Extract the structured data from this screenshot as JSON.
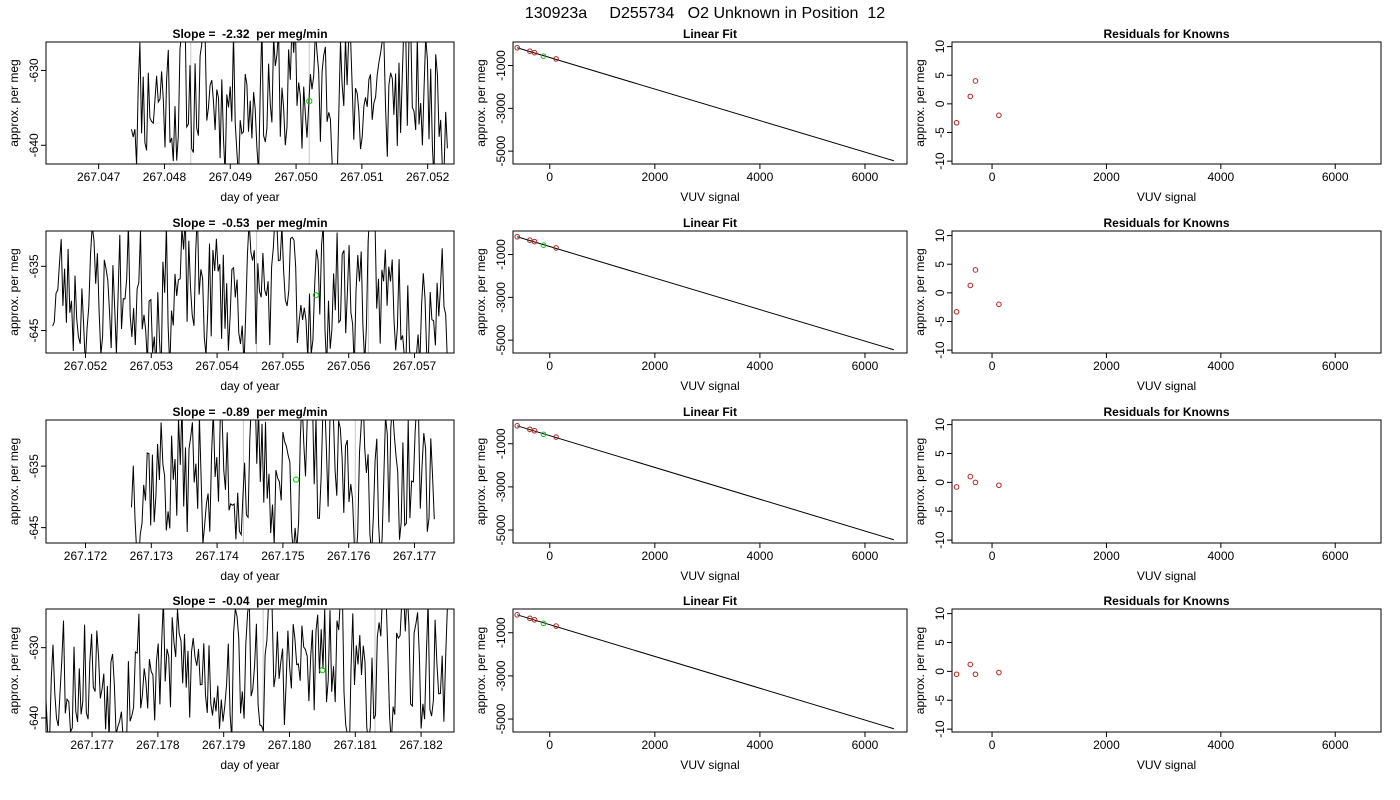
{
  "figure_title": "130923a     D255734   O2 Unknown in Position  12",
  "chart_data": [
    {
      "type": "line",
      "title": "Slope =  -2.32  per meg/min",
      "xlabel": "day of year",
      "ylabel": "approx. per meg",
      "xlim": [
        267.0462,
        267.0524
      ],
      "ylim": [
        -642.5,
        -626.2
      ],
      "x_ticks": [
        "267.047",
        "267.048",
        "267.049",
        "267.050",
        "267.051",
        "267.052"
      ],
      "y_ticks": [
        "-630",
        "-640"
      ],
      "series": [
        {
          "seed": 11,
          "x_start": 267.0475,
          "x_end": 267.0523,
          "n": 190,
          "center": -633,
          "amplitude": 9
        }
      ],
      "marker": {
        "x": 267.0502,
        "y": -634.1,
        "color": "#00cc00"
      },
      "shaded_lines": [
        267.0484,
        267.0502
      ]
    },
    {
      "type": "scatter",
      "title": "Linear Fit",
      "xlabel": "VUV signal",
      "ylabel": "approx. per meg",
      "xlim": [
        -700,
        6800
      ],
      "ylim": [
        -5600,
        100
      ],
      "x_ticks": [
        "0",
        "2000",
        "4000",
        "6000"
      ],
      "y_ticks": [
        "-1000",
        "-3000",
        "-5000"
      ],
      "line": [
        [
          -620,
          -170
        ],
        [
          6550,
          -5450
        ]
      ],
      "known_points": [
        [
          -620,
          -170
        ],
        [
          -380,
          -330
        ],
        [
          -290,
          -400
        ],
        [
          120,
          -690
        ]
      ],
      "unknown_point": [
        -120,
        -560
      ]
    },
    {
      "type": "scatter",
      "title": "Residuals for Knowns",
      "xlabel": "VUV signal",
      "ylabel": "approx. per meg",
      "xlim": [
        -700,
        6800
      ],
      "ylim": [
        -10.5,
        10.8
      ],
      "x_ticks": [
        "0",
        "2000",
        "4000",
        "6000"
      ],
      "y_ticks": [
        "-10",
        "-5",
        "0",
        "5",
        "10"
      ],
      "points": [
        [
          -620,
          -3.3
        ],
        [
          -380,
          1.3
        ],
        [
          -290,
          4.0
        ],
        [
          120,
          -2.0
        ]
      ]
    },
    {
      "type": "line",
      "title": "Slope =  -0.53  per meg/min",
      "xlabel": "day of year",
      "ylabel": "approx. per meg",
      "xlim": [
        267.0514,
        267.0576
      ],
      "ylim": [
        -648.5,
        -629.5
      ],
      "x_ticks": [
        "267.052",
        "267.053",
        "267.054",
        "267.055",
        "267.056",
        "267.057"
      ],
      "y_ticks": [
        "-635",
        "-645"
      ],
      "series": [
        {
          "seed": 23,
          "x_start": 267.0515,
          "x_end": 267.0575,
          "n": 230,
          "center": -639,
          "amplitude": 10
        }
      ],
      "marker": {
        "x": 267.0555,
        "y": -639.5,
        "color": "#00cc00"
      },
      "shaded_lines": [
        267.0546,
        267.0563
      ]
    },
    {
      "type": "scatter",
      "title": "Linear Fit",
      "xlabel": "VUV signal",
      "ylabel": "approx. per meg",
      "xlim": [
        -700,
        6800
      ],
      "ylim": [
        -5600,
        100
      ],
      "x_ticks": [
        "0",
        "2000",
        "4000",
        "6000"
      ],
      "y_ticks": [
        "-1000",
        "-3000",
        "-5000"
      ],
      "line": [
        [
          -620,
          -170
        ],
        [
          6550,
          -5450
        ]
      ],
      "known_points": [
        [
          -620,
          -170
        ],
        [
          -380,
          -330
        ],
        [
          -290,
          -400
        ],
        [
          120,
          -690
        ]
      ],
      "unknown_point": [
        -120,
        -560
      ]
    },
    {
      "type": "scatter",
      "title": "Residuals for Knowns",
      "xlabel": "VUV signal",
      "ylabel": "approx. per meg",
      "xlim": [
        -700,
        6800
      ],
      "ylim": [
        -10.5,
        10.8
      ],
      "x_ticks": [
        "0",
        "2000",
        "4000",
        "6000"
      ],
      "y_ticks": [
        "-10",
        "-5",
        "0",
        "5",
        "10"
      ],
      "points": [
        [
          -620,
          -3.3
        ],
        [
          -380,
          1.3
        ],
        [
          -290,
          4.0
        ],
        [
          120,
          -2.0
        ]
      ]
    },
    {
      "type": "line",
      "title": "Slope =  -0.89  per meg/min",
      "xlabel": "day of year",
      "ylabel": "approx. per meg",
      "xlim": [
        267.1714,
        267.1776
      ],
      "ylim": [
        -647.5,
        -627.5
      ],
      "x_ticks": [
        "267.172",
        "267.173",
        "267.174",
        "267.175",
        "267.176",
        "267.177"
      ],
      "y_ticks": [
        "-635",
        "-645"
      ],
      "series": [
        {
          "seed": 37,
          "x_start": 267.1727,
          "x_end": 267.1773,
          "n": 175,
          "center": -636,
          "amplitude": 11
        }
      ],
      "marker": {
        "x": 267.1752,
        "y": -637.2,
        "color": "#00cc00"
      },
      "shaded_lines": [
        267.1744,
        267.1761
      ]
    },
    {
      "type": "scatter",
      "title": "Linear Fit",
      "xlabel": "VUV signal",
      "ylabel": "approx. per meg",
      "xlim": [
        -700,
        6800
      ],
      "ylim": [
        -5600,
        100
      ],
      "x_ticks": [
        "0",
        "2000",
        "4000",
        "6000"
      ],
      "y_ticks": [
        "-1000",
        "-3000",
        "-5000"
      ],
      "line": [
        [
          -620,
          -170
        ],
        [
          6550,
          -5450
        ]
      ],
      "known_points": [
        [
          -620,
          -170
        ],
        [
          -380,
          -330
        ],
        [
          -290,
          -400
        ],
        [
          120,
          -690
        ]
      ],
      "unknown_point": [
        -120,
        -560
      ]
    },
    {
      "type": "scatter",
      "title": "Residuals for Knowns",
      "xlabel": "VUV signal",
      "ylabel": "approx. per meg",
      "xlim": [
        -700,
        6800
      ],
      "ylim": [
        -10.5,
        10.8
      ],
      "x_ticks": [
        "0",
        "2000",
        "4000",
        "6000"
      ],
      "y_ticks": [
        "-10",
        "-5",
        "0",
        "5",
        "10"
      ],
      "points": [
        [
          -620,
          -0.8
        ],
        [
          -380,
          1.0
        ],
        [
          -290,
          0.0
        ],
        [
          120,
          -0.5
        ]
      ]
    },
    {
      "type": "line",
      "title": "Slope =  -0.04  per meg/min",
      "xlabel": "day of year",
      "ylabel": "approx. per meg",
      "xlim": [
        267.1763,
        267.1825
      ],
      "ylim": [
        -642,
        -624.5
      ],
      "x_ticks": [
        "267.177",
        "267.178",
        "267.179",
        "267.180",
        "267.181",
        "267.182"
      ],
      "y_ticks": [
        "-630",
        "-640"
      ],
      "series": [
        {
          "seed": 53,
          "x_start": 267.1763,
          "x_end": 267.1824,
          "n": 230,
          "center": -633,
          "amplitude": 9
        }
      ],
      "marker": {
        "x": 267.1805,
        "y": -633.2,
        "color": "#00cc00"
      },
      "shaded_lines": [
        267.1796,
        267.1813
      ]
    },
    {
      "type": "scatter",
      "title": "Linear Fit",
      "xlabel": "VUV signal",
      "ylabel": "approx. per meg",
      "xlim": [
        -700,
        6800
      ],
      "ylim": [
        -5600,
        100
      ],
      "x_ticks": [
        "0",
        "2000",
        "4000",
        "6000"
      ],
      "y_ticks": [
        "-1000",
        "-3000",
        "-5000"
      ],
      "line": [
        [
          -620,
          -170
        ],
        [
          6550,
          -5450
        ]
      ],
      "known_points": [
        [
          -620,
          -170
        ],
        [
          -380,
          -330
        ],
        [
          -290,
          -400
        ],
        [
          120,
          -690
        ]
      ],
      "unknown_point": [
        -120,
        -560
      ]
    },
    {
      "type": "scatter",
      "title": "Residuals for Knowns",
      "xlabel": "VUV signal",
      "ylabel": "approx. per meg",
      "xlim": [
        -700,
        6800
      ],
      "ylim": [
        -10.5,
        10.8
      ],
      "x_ticks": [
        "0",
        "2000",
        "4000",
        "6000"
      ],
      "y_ticks": [
        "-10",
        "-5",
        "0",
        "5",
        "10"
      ],
      "points": [
        [
          -620,
          -0.5
        ],
        [
          -380,
          1.2
        ],
        [
          -290,
          -0.5
        ],
        [
          120,
          -0.2
        ]
      ]
    }
  ],
  "colors": {
    "known_point": "#b22222",
    "unknown_point": "#00cc00",
    "line": "#000000",
    "shade": "#c8c8c8"
  }
}
